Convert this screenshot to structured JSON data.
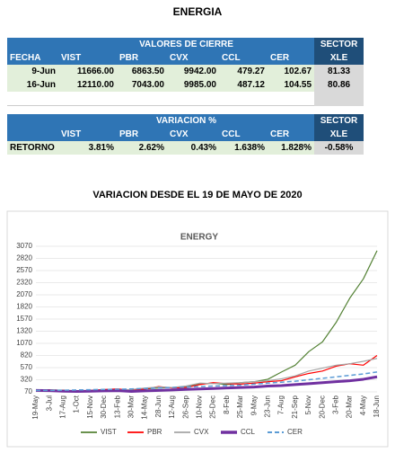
{
  "title": "ENERGIA",
  "table1": {
    "group": "VALORES DE CIERRE",
    "sector": "SECTOR",
    "columns": [
      "FECHA",
      "VIST",
      "PBR",
      "CVX",
      "CCL",
      "CER",
      "XLE"
    ],
    "rows": [
      [
        "9-Jun",
        "11666.00",
        "6863.50",
        "9942.00",
        "479.27",
        "102.67",
        "81.33"
      ],
      [
        "16-Jun",
        "12110.00",
        "7043.00",
        "9985.00",
        "487.12",
        "104.55",
        "80.86"
      ]
    ]
  },
  "table2": {
    "group": "VARIACION %",
    "sector": "SECTOR",
    "columns": [
      "VIST",
      "PBR",
      "CVX",
      "CCL",
      "CER",
      "XLE"
    ],
    "rows": [
      [
        "RETORNO",
        "3.81%",
        "2.62%",
        "0.43%",
        "1.638%",
        "1.828%",
        "-0.58%"
      ]
    ]
  },
  "subtitle": "VARIACION DESDE EL 19 DE MAYO DE 2020",
  "chart_data": {
    "type": "line",
    "title": "ENERGY",
    "categories": [
      "19-May",
      "3-Jul",
      "17-Aug",
      "1-Oct",
      "15-Nov",
      "30-Dec",
      "13-Feb",
      "30-Mar",
      "14-May",
      "28-Jun",
      "12-Aug",
      "26-Sep",
      "10-Nov",
      "25-Dec",
      "8-Feb",
      "25-Mar",
      "9-May",
      "23-Jun",
      "7-Aug",
      "21-Sep",
      "5-Nov",
      "20-Dec",
      "3-Feb",
      "20-Mar",
      "4-May",
      "18-Jun"
    ],
    "ylim": [
      70,
      3070
    ],
    "yticks": [
      70,
      320,
      570,
      820,
      1070,
      1320,
      1570,
      1820,
      2070,
      2320,
      2570,
      2820,
      3070
    ],
    "grid": true,
    "legend": "bottom",
    "series": [
      {
        "name": "VIST",
        "color": "#548235",
        "width": 1.2,
        "values": [
          100,
          110,
          105,
          90,
          100,
          110,
          120,
          110,
          130,
          150,
          160,
          170,
          230,
          250,
          220,
          260,
          280,
          330,
          480,
          620,
          900,
          1100,
          1500,
          2000,
          2400,
          2980
        ]
      },
      {
        "name": "PBR",
        "color": "#ff0000",
        "width": 1.2,
        "values": [
          100,
          110,
          100,
          90,
          100,
          120,
          130,
          100,
          130,
          180,
          150,
          160,
          220,
          260,
          240,
          230,
          250,
          280,
          300,
          380,
          450,
          500,
          600,
          650,
          620,
          820
        ]
      },
      {
        "name": "CVX",
        "color": "#a5a5a5",
        "width": 1.2,
        "values": [
          100,
          95,
          90,
          85,
          90,
          100,
          110,
          120,
          150,
          170,
          160,
          190,
          250,
          240,
          250,
          260,
          280,
          300,
          340,
          400,
          500,
          560,
          620,
          650,
          700,
          760
        ]
      },
      {
        "name": "CCL",
        "color": "#7030a0",
        "width": 3,
        "values": [
          100,
          95,
          85,
          80,
          85,
          90,
          95,
          80,
          90,
          100,
          110,
          120,
          130,
          140,
          150,
          160,
          170,
          190,
          200,
          220,
          240,
          260,
          280,
          300,
          330,
          380
        ]
      },
      {
        "name": "CER",
        "color": "#5b9bd5",
        "width": 1.5,
        "dashed": true,
        "values": [
          100,
          100,
          105,
          110,
          115,
          120,
          125,
          130,
          140,
          150,
          160,
          170,
          180,
          190,
          200,
          210,
          230,
          250,
          270,
          290,
          320,
          350,
          380,
          410,
          440,
          480
        ]
      }
    ]
  }
}
